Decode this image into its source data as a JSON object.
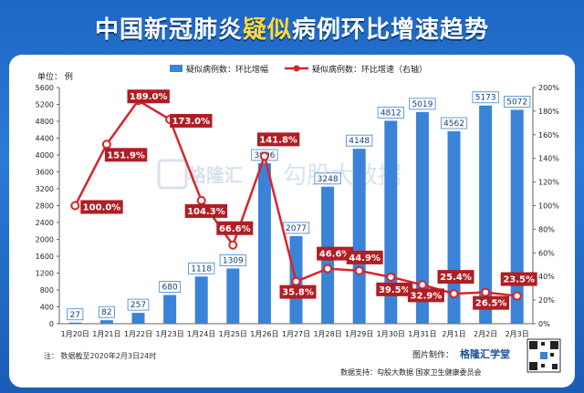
{
  "header": {
    "title_part1": "中国新冠肺炎",
    "title_highlight": "疑似",
    "title_part2": "病例环比增速趋势"
  },
  "labels": {
    "unit_left": "单位：  例",
    "note": "注：  数据截至2020年2月3日24时",
    "credit_label": "图片制作：",
    "credit_brand": "格隆汇学堂",
    "source": "数据支持：勾股大数据  国家卫生健康委员会",
    "watermark_brand": "格隆汇",
    "watermark_text": "勾股大数据"
  },
  "colors": {
    "bar": "#3a83d8",
    "line": "#d8252b",
    "label_box": "#b01e24",
    "title_highlight": "#ffd93b"
  },
  "chart_data": {
    "type": "bar+line",
    "categories": [
      "1月20日",
      "1月21日",
      "1月22日",
      "1月23日",
      "1月24日",
      "1月25日",
      "1月26日",
      "1月27日",
      "1月28日",
      "1月29日",
      "1月30日",
      "1月31日",
      "2月1日",
      "2月2日",
      "2月3日"
    ],
    "series": [
      {
        "name": "疑似病例数：环比增幅",
        "type": "bar",
        "axis": "left",
        "values": [
          27,
          82,
          257,
          680,
          1118,
          1309,
          3806,
          2077,
          3248,
          4148,
          4812,
          5019,
          4562,
          5173,
          5072
        ]
      },
      {
        "name": "疑似病例数：环比增速（右轴）",
        "type": "line",
        "axis": "right",
        "values": [
          100.0,
          151.9,
          189.0,
          173.0,
          104.3,
          66.6,
          141.8,
          35.8,
          46.6,
          44.9,
          39.5,
          32.9,
          25.4,
          26.5,
          23.5
        ],
        "labels": [
          "100.0%",
          "151.9%",
          "189.0%",
          "173.0%",
          "104.3%",
          "66.6%",
          "141.8%",
          "35.8%",
          "46.6%",
          "44.9%",
          "39.5%",
          "32.9%",
          "25.4%",
          "26.5%",
          "23.5%"
        ]
      }
    ],
    "y_left": {
      "min": 0,
      "max": 5600,
      "ticks": [
        "0",
        "400",
        "800",
        "1200",
        "1600",
        "2000",
        "2400",
        "2800",
        "3200",
        "3600",
        "4000",
        "4400",
        "4800",
        "5200",
        "5600"
      ]
    },
    "y_right": {
      "min": 0,
      "max": 200,
      "ticks": [
        "0%",
        "20%",
        "40%",
        "60%",
        "80%",
        "100%",
        "120%",
        "140%",
        "160%",
        "180%",
        "200%"
      ]
    },
    "legend_position": "top",
    "grid": false
  }
}
